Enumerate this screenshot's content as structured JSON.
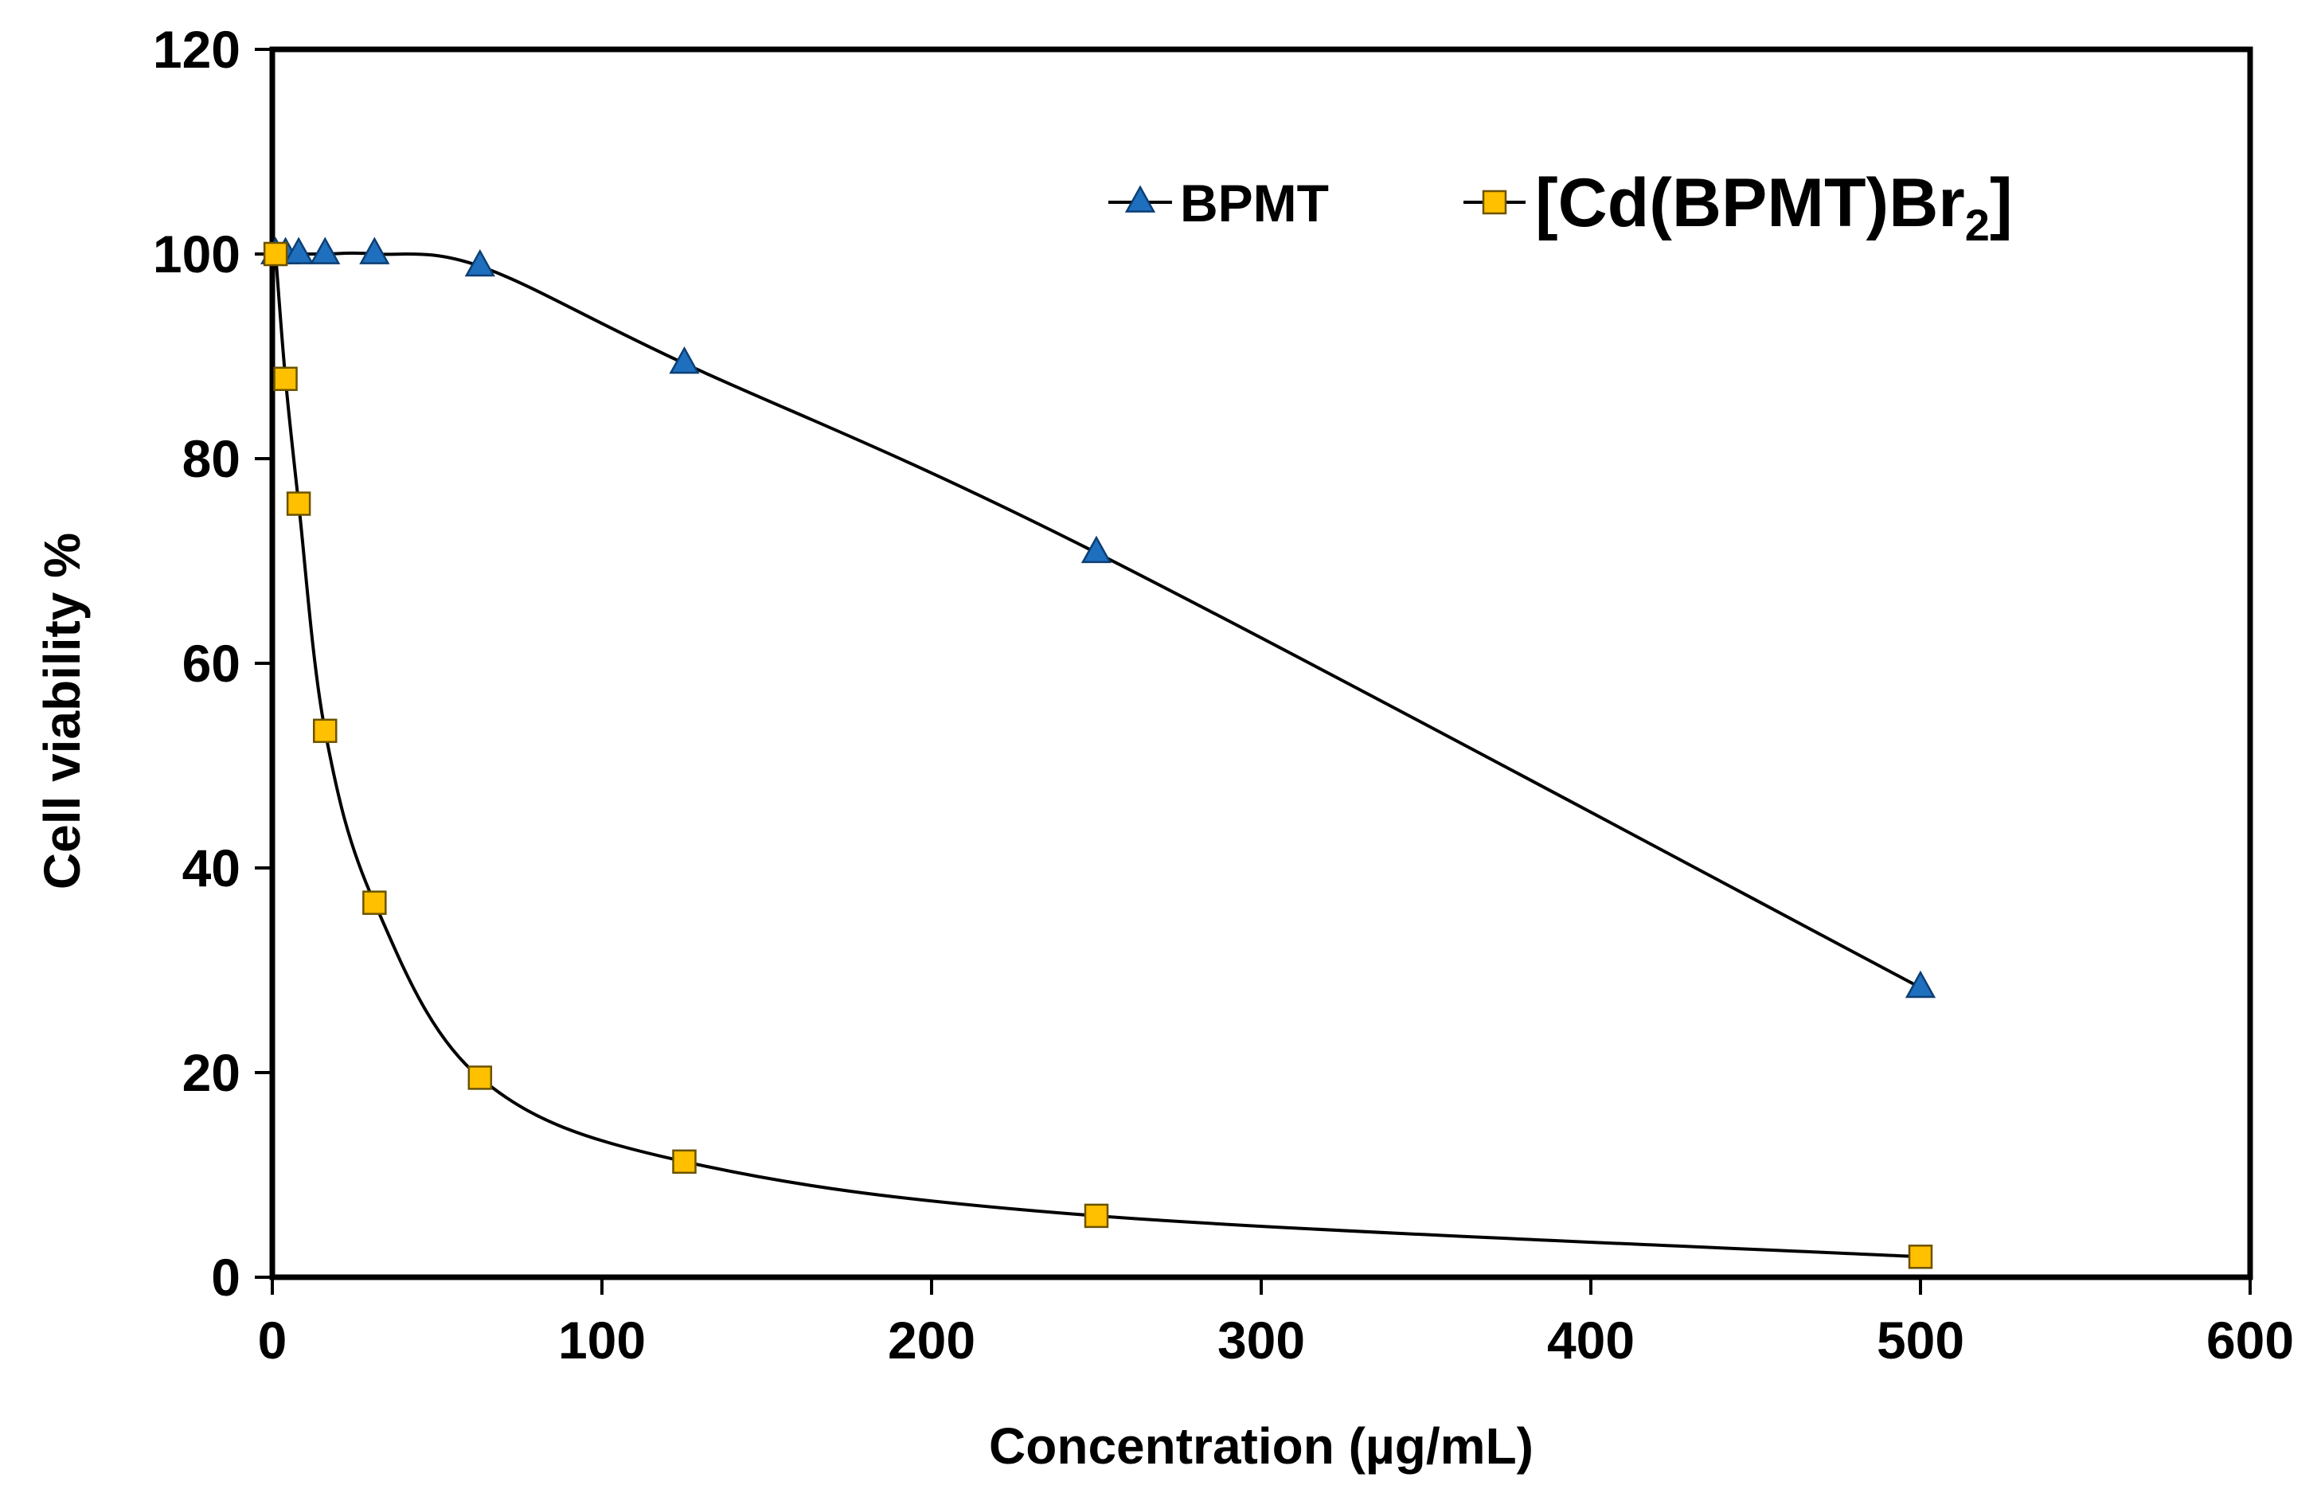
{
  "chart_data": {
    "type": "line",
    "title": "",
    "xlabel": "Concentration (µg/mL)",
    "ylabel": "Cell viability %",
    "xlim": [
      0,
      600
    ],
    "ylim": [
      0,
      120
    ],
    "x_ticks": [
      0,
      100,
      200,
      300,
      400,
      500,
      600
    ],
    "y_ticks": [
      0,
      20,
      40,
      60,
      80,
      100,
      120
    ],
    "x_tick_labels": [
      "0",
      "100",
      "200",
      "300",
      "400",
      "500",
      "600"
    ],
    "y_tick_labels": [
      "0",
      "20",
      "40",
      "60",
      "80",
      "100",
      "120"
    ],
    "grid": false,
    "legend_position": "top-right",
    "series": [
      {
        "name": "BPMT",
        "marker": "triangle",
        "color": "#1f6fbf",
        "x": [
          1,
          4,
          8,
          16,
          31,
          63,
          125,
          250,
          500
        ],
        "y": [
          100,
          100,
          100,
          100,
          100,
          98.8,
          89.3,
          70.8,
          28.3
        ]
      },
      {
        "name": "[Cd(BPMT)Br",
        "name_subscript": "2",
        "name_suffix": "]",
        "marker": "square",
        "color": "#ffc000",
        "x": [
          1,
          4,
          8,
          16,
          31,
          63,
          125,
          250,
          500
        ],
        "y": [
          100,
          87.8,
          75.6,
          53.4,
          36.6,
          19.5,
          11.3,
          6,
          2
        ]
      }
    ]
  }
}
